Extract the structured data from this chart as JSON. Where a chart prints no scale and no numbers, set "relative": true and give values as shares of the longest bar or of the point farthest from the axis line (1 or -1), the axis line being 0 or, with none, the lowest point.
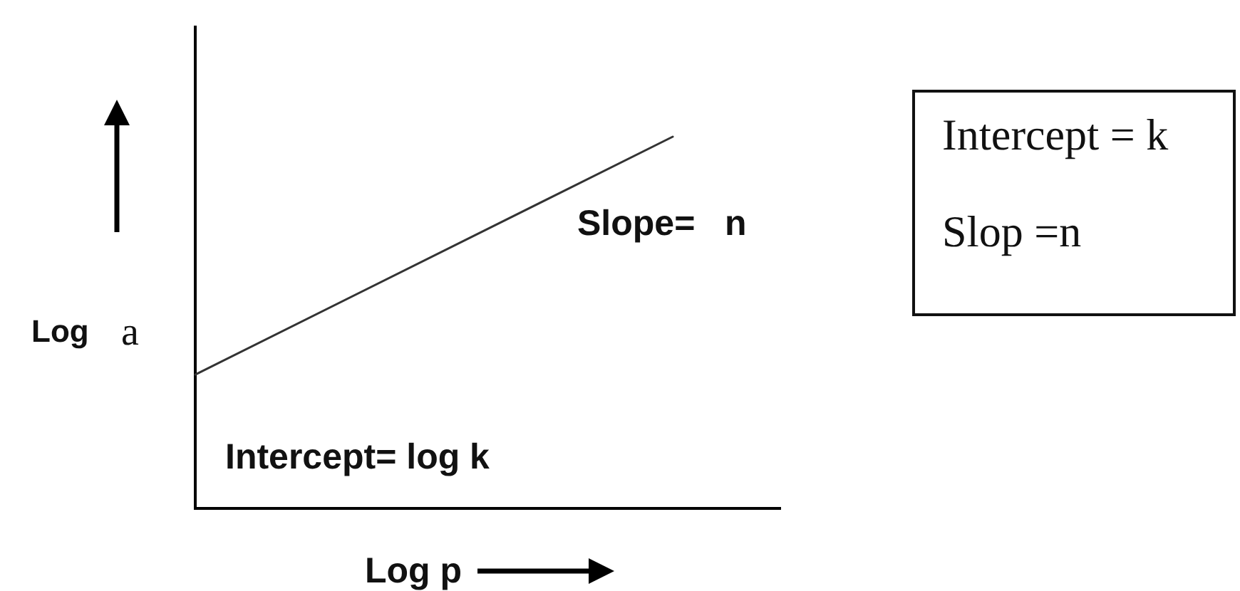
{
  "chart_data": {
    "type": "line",
    "relative": true,
    "xlabel": "Log p",
    "ylabel": "Log a",
    "categories": [
      null,
      null
    ],
    "values": [
      0.36,
      1
    ],
    "color": "#333333",
    "annotations": [
      "Slope=   n",
      "Intercept= log k",
      "Intercept = k",
      "Slop =n"
    ]
  }
}
